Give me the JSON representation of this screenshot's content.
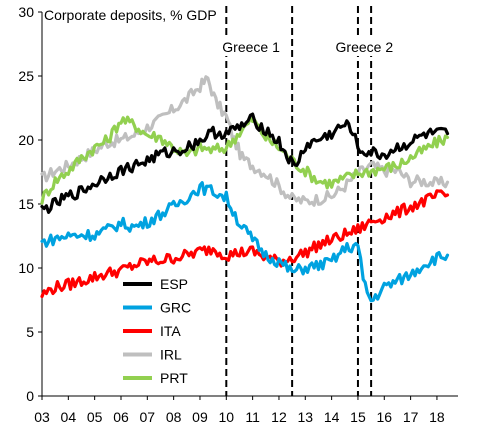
{
  "chart_data": {
    "type": "line",
    "title": "Corporate deposits, % GDP",
    "xlabel": "",
    "ylabel": "",
    "xlim": [
      2003.0,
      2018.8
    ],
    "ylim": [
      0,
      30
    ],
    "yticks": [
      0,
      5,
      10,
      15,
      20,
      25,
      30
    ],
    "xtick_labels": [
      "03",
      "04",
      "05",
      "06",
      "07",
      "08",
      "09",
      "10",
      "11",
      "12",
      "13",
      "14",
      "15",
      "16",
      "17",
      "18"
    ],
    "grid": false,
    "legend_position": "lower-left",
    "annotations": [
      {
        "text": "Greece 1",
        "x_lines": [
          2010.0,
          2012.5
        ],
        "label_x": 2010.0
      },
      {
        "text": "Greece 2",
        "x_lines": [
          2015.0,
          2015.5
        ],
        "label_x": 2014.3
      }
    ],
    "series": [
      {
        "name": "ESP",
        "color": "#000000",
        "points": [
          [
            2003.0,
            14.5
          ],
          [
            2003.5,
            15.0
          ],
          [
            2004.0,
            15.6
          ],
          [
            2004.5,
            16.0
          ],
          [
            2005.0,
            16.6
          ],
          [
            2005.5,
            17.2
          ],
          [
            2006.0,
            17.6
          ],
          [
            2006.5,
            18.0
          ],
          [
            2007.0,
            18.4
          ],
          [
            2007.5,
            18.9
          ],
          [
            2008.0,
            19.1
          ],
          [
            2008.5,
            19.4
          ],
          [
            2009.0,
            20.0
          ],
          [
            2009.5,
            20.6
          ],
          [
            2010.0,
            20.5
          ],
          [
            2010.5,
            21.0
          ],
          [
            2011.0,
            21.6
          ],
          [
            2011.5,
            20.8
          ],
          [
            2012.0,
            19.8
          ],
          [
            2012.3,
            18.8
          ],
          [
            2012.6,
            17.8
          ],
          [
            2013.0,
            19.5
          ],
          [
            2013.5,
            20.0
          ],
          [
            2014.0,
            20.5
          ],
          [
            2014.5,
            21.2
          ],
          [
            2014.8,
            20.8
          ],
          [
            2015.0,
            19.2
          ],
          [
            2015.5,
            19.0
          ],
          [
            2016.0,
            18.8
          ],
          [
            2016.5,
            19.4
          ],
          [
            2017.0,
            19.8
          ],
          [
            2017.5,
            20.4
          ],
          [
            2018.0,
            20.5
          ],
          [
            2018.4,
            20.5
          ]
        ]
      },
      {
        "name": "GRC",
        "color": "#00a2e0",
        "points": [
          [
            2003.0,
            12.0
          ],
          [
            2003.5,
            12.3
          ],
          [
            2004.0,
            12.5
          ],
          [
            2004.5,
            12.6
          ],
          [
            2005.0,
            12.6
          ],
          [
            2005.5,
            13.0
          ],
          [
            2006.0,
            13.5
          ],
          [
            2006.5,
            13.2
          ],
          [
            2007.0,
            13.6
          ],
          [
            2007.5,
            14.2
          ],
          [
            2008.0,
            14.8
          ],
          [
            2008.5,
            15.5
          ],
          [
            2009.0,
            16.3
          ],
          [
            2009.5,
            16.0
          ],
          [
            2010.0,
            15.5
          ],
          [
            2010.5,
            13.5
          ],
          [
            2011.0,
            12.2
          ],
          [
            2011.5,
            11.0
          ],
          [
            2012.0,
            10.5
          ],
          [
            2012.5,
            9.7
          ],
          [
            2013.0,
            10.0
          ],
          [
            2013.5,
            10.2
          ],
          [
            2014.0,
            10.5
          ],
          [
            2014.5,
            11.5
          ],
          [
            2015.0,
            11.8
          ],
          [
            2015.2,
            9.0
          ],
          [
            2015.5,
            7.4
          ],
          [
            2016.0,
            8.5
          ],
          [
            2016.5,
            9.0
          ],
          [
            2017.0,
            9.5
          ],
          [
            2017.5,
            10.3
          ],
          [
            2018.0,
            10.8
          ],
          [
            2018.4,
            11.0
          ]
        ]
      },
      {
        "name": "ITA",
        "color": "#ff0000",
        "points": [
          [
            2003.0,
            7.9
          ],
          [
            2003.5,
            8.5
          ],
          [
            2004.0,
            8.7
          ],
          [
            2004.5,
            9.0
          ],
          [
            2005.0,
            9.3
          ],
          [
            2005.5,
            9.6
          ],
          [
            2006.0,
            9.8
          ],
          [
            2006.5,
            10.2
          ],
          [
            2007.0,
            10.5
          ],
          [
            2007.5,
            10.6
          ],
          [
            2008.0,
            10.8
          ],
          [
            2008.5,
            11.0
          ],
          [
            2009.0,
            11.3
          ],
          [
            2009.5,
            11.5
          ],
          [
            2010.0,
            11.0
          ],
          [
            2010.5,
            11.2
          ],
          [
            2011.0,
            11.3
          ],
          [
            2011.5,
            10.8
          ],
          [
            2012.0,
            10.5
          ],
          [
            2012.5,
            10.8
          ],
          [
            2013.0,
            11.2
          ],
          [
            2013.5,
            11.8
          ],
          [
            2014.0,
            12.2
          ],
          [
            2014.5,
            12.6
          ],
          [
            2015.0,
            13.0
          ],
          [
            2015.5,
            13.6
          ],
          [
            2016.0,
            14.0
          ],
          [
            2016.5,
            14.3
          ],
          [
            2017.0,
            14.8
          ],
          [
            2017.5,
            15.2
          ],
          [
            2018.0,
            15.6
          ],
          [
            2018.4,
            15.7
          ]
        ]
      },
      {
        "name": "IRL",
        "color": "#bfbfbf",
        "points": [
          [
            2003.0,
            17.0
          ],
          [
            2003.5,
            17.6
          ],
          [
            2004.0,
            18.0
          ],
          [
            2004.5,
            18.6
          ],
          [
            2005.0,
            19.2
          ],
          [
            2005.5,
            19.8
          ],
          [
            2006.0,
            20.0
          ],
          [
            2006.5,
            20.4
          ],
          [
            2007.0,
            21.0
          ],
          [
            2007.5,
            21.6
          ],
          [
            2008.0,
            22.4
          ],
          [
            2008.5,
            23.2
          ],
          [
            2009.0,
            24.2
          ],
          [
            2009.3,
            24.8
          ],
          [
            2009.6,
            23.0
          ],
          [
            2010.0,
            21.8
          ],
          [
            2010.3,
            20.0
          ],
          [
            2010.6,
            18.6
          ],
          [
            2011.0,
            18.0
          ],
          [
            2011.5,
            17.4
          ],
          [
            2012.0,
            16.4
          ],
          [
            2012.5,
            15.4
          ],
          [
            2013.0,
            15.2
          ],
          [
            2013.5,
            15.4
          ],
          [
            2014.0,
            15.6
          ],
          [
            2014.5,
            16.4
          ],
          [
            2015.0,
            17.4
          ],
          [
            2015.5,
            18.0
          ],
          [
            2016.0,
            17.6
          ],
          [
            2016.5,
            17.6
          ],
          [
            2017.0,
            16.8
          ],
          [
            2017.5,
            16.8
          ],
          [
            2018.0,
            16.6
          ],
          [
            2018.4,
            16.7
          ]
        ]
      },
      {
        "name": "PRT",
        "color": "#92d050",
        "points": [
          [
            2003.0,
            15.4
          ],
          [
            2003.5,
            16.8
          ],
          [
            2004.0,
            17.6
          ],
          [
            2004.5,
            18.6
          ],
          [
            2005.0,
            19.4
          ],
          [
            2005.5,
            20.0
          ],
          [
            2006.0,
            21.6
          ],
          [
            2006.5,
            21.2
          ],
          [
            2007.0,
            20.4
          ],
          [
            2007.5,
            20.2
          ],
          [
            2008.0,
            19.4
          ],
          [
            2008.5,
            18.8
          ],
          [
            2009.0,
            19.4
          ],
          [
            2009.5,
            19.2
          ],
          [
            2010.0,
            19.4
          ],
          [
            2010.5,
            20.6
          ],
          [
            2011.0,
            21.6
          ],
          [
            2011.5,
            20.2
          ],
          [
            2012.0,
            19.4
          ],
          [
            2012.5,
            18.4
          ],
          [
            2013.0,
            17.6
          ],
          [
            2013.5,
            16.8
          ],
          [
            2014.0,
            16.6
          ],
          [
            2014.5,
            17.0
          ],
          [
            2015.0,
            17.4
          ],
          [
            2015.5,
            17.6
          ],
          [
            2016.0,
            17.8
          ],
          [
            2016.5,
            18.0
          ],
          [
            2017.0,
            18.6
          ],
          [
            2017.5,
            19.2
          ],
          [
            2018.0,
            19.8
          ],
          [
            2018.4,
            20.2
          ]
        ]
      }
    ]
  }
}
